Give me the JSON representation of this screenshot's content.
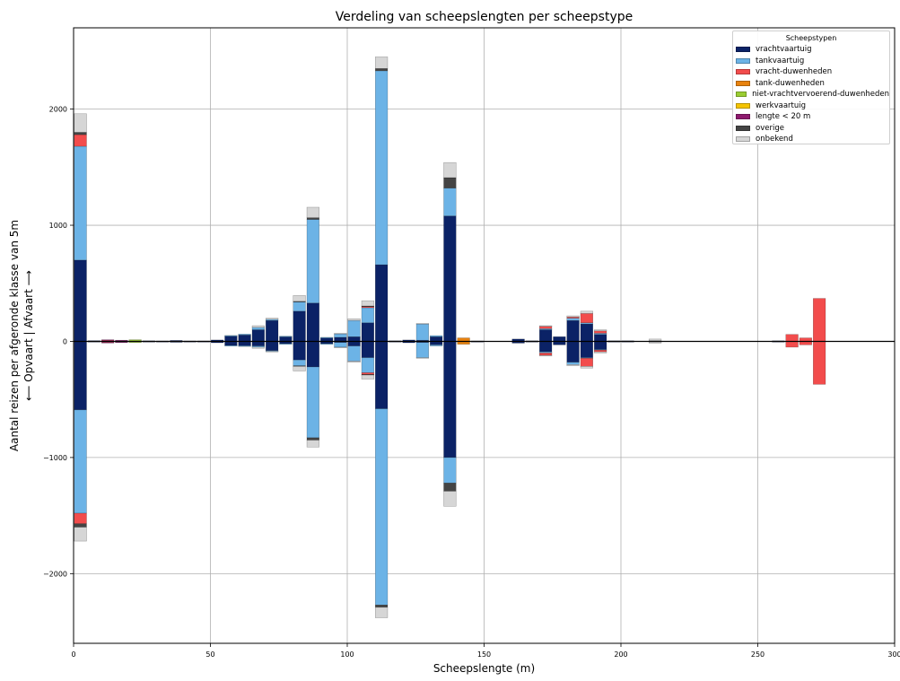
{
  "chart_data": {
    "type": "bar",
    "title": "Verdeling van scheepslengten per scheepstype",
    "xlabel": "Scheepslengte (m)",
    "ylabel_line1": "Aantal reizen per afgeronde klasse van 5m",
    "ylabel_line2": "⟵  Opvaart | Afvaart  ⟶",
    "xlim": [
      0,
      300
    ],
    "ylim": [
      -2600,
      2700
    ],
    "xticks": [
      0,
      50,
      100,
      150,
      200,
      250,
      300
    ],
    "yticks": [
      -2000,
      -1000,
      0,
      1000,
      2000
    ],
    "xtick_labels": [
      "0",
      "50",
      "100",
      "150",
      "200",
      "250",
      "300"
    ],
    "ytick_labels": [
      "−2000",
      "−1000",
      "0",
      "1000",
      "2000"
    ],
    "grid": true,
    "bar_width": 4.5,
    "legend": {
      "title": "Scheepstypen",
      "position": "top-right",
      "entries": [
        {
          "key": "vracht",
          "label": "vrachtvaartuig",
          "color": "#0b2266"
        },
        {
          "key": "tank",
          "label": "tankvaartuig",
          "color": "#6cb3e6"
        },
        {
          "key": "vduw",
          "label": "vracht-duwenheden",
          "color": "#f24c4c"
        },
        {
          "key": "tduw",
          "label": "tank-duwenheden",
          "color": "#e8820e"
        },
        {
          "key": "nvduw",
          "label": "niet-vrachtvervoerend-duwenheden",
          "color": "#9acd32"
        },
        {
          "key": "werk",
          "label": "werkvaartuig",
          "color": "#f5c400"
        },
        {
          "key": "klein",
          "label": "lengte < 20 m",
          "color": "#8e1a6e"
        },
        {
          "key": "overig",
          "label": "overige",
          "color": "#444444"
        },
        {
          "key": "onbekend",
          "label": "onbekend",
          "color": "#d6d6d6"
        }
      ]
    },
    "series_order": [
      "vracht",
      "tank",
      "vduw",
      "tduw",
      "nvduw",
      "werk",
      "klein",
      "overig",
      "onbekend"
    ],
    "bins": [
      {
        "x": 2.5,
        "up": {
          "vracht": 700,
          "tank": 980,
          "vduw": 100,
          "overig": 20,
          "onbekend": 160
        },
        "down": {
          "vracht": 590,
          "tank": 890,
          "vduw": 90,
          "overig": 30,
          "onbekend": 120
        }
      },
      {
        "x": 7.5,
        "up": {
          "vracht": 6
        },
        "down": {
          "vracht": 6
        }
      },
      {
        "x": 12.5,
        "up": {
          "vduw": 8,
          "klein": 6
        },
        "down": {
          "vduw": 8,
          "klein": 6
        }
      },
      {
        "x": 17.5,
        "up": {
          "vracht": 5,
          "klein": 5
        },
        "down": {
          "vracht": 5,
          "klein": 5
        }
      },
      {
        "x": 22.5,
        "up": {
          "nvduw": 10,
          "vracht": 4
        },
        "down": {
          "nvduw": 6,
          "vracht": 4
        }
      },
      {
        "x": 27.5,
        "up": {
          "vracht": 5
        },
        "down": {
          "vracht": 5
        }
      },
      {
        "x": 32.5,
        "up": {
          "vracht": 4
        },
        "down": {
          "vracht": 4
        }
      },
      {
        "x": 37.5,
        "up": {
          "vracht": 8
        },
        "down": {
          "vracht": 8
        }
      },
      {
        "x": 42.5,
        "up": {
          "vracht": 4
        },
        "down": {
          "vracht": 4
        }
      },
      {
        "x": 47.5,
        "up": {
          "vracht": 4
        },
        "down": {
          "vracht": 4
        }
      },
      {
        "x": 52.5,
        "up": {
          "vracht": 12
        },
        "down": {
          "vracht": 12
        }
      },
      {
        "x": 57.5,
        "up": {
          "vracht": 45,
          "tank": 6
        },
        "down": {
          "vracht": 35,
          "tank": 5
        }
      },
      {
        "x": 62.5,
        "up": {
          "vracht": 55,
          "tank": 8
        },
        "down": {
          "vracht": 38,
          "tank": 6
        }
      },
      {
        "x": 67.5,
        "up": {
          "vracht": 100,
          "tank": 20,
          "onbekend": 15
        },
        "down": {
          "vracht": 40,
          "tank": 10,
          "onbekend": 10
        }
      },
      {
        "x": 72.5,
        "up": {
          "vracht": 180,
          "tank": 10,
          "onbekend": 10
        },
        "down": {
          "vracht": 80,
          "tank": 5,
          "onbekend": 5
        }
      },
      {
        "x": 77.5,
        "up": {
          "vracht": 40,
          "tank": 5
        },
        "down": {
          "vracht": 20,
          "tank": 5
        }
      },
      {
        "x": 82.5,
        "up": {
          "vracht": 260,
          "tank": 80,
          "overig": 5,
          "onbekend": 50
        },
        "down": {
          "vracht": 160,
          "tank": 50,
          "overig": 5,
          "onbekend": 40
        }
      },
      {
        "x": 87.5,
        "up": {
          "vracht": 330,
          "tank": 720,
          "overig": 15,
          "onbekend": 90
        },
        "down": {
          "vracht": 220,
          "tank": 610,
          "overig": 20,
          "onbekend": 60
        }
      },
      {
        "x": 92.5,
        "up": {
          "vracht": 30,
          "tank": 5
        },
        "down": {
          "vracht": 20,
          "tank": 4
        }
      },
      {
        "x": 97.5,
        "up": {
          "vracht": 35,
          "tank": 30,
          "onbekend": 5
        },
        "down": {
          "vracht": 10,
          "tank": 40,
          "onbekend": 5
        }
      },
      {
        "x": 102.5,
        "up": {
          "vracht": 40,
          "tank": 140,
          "onbekend": 15
        },
        "down": {
          "vracht": 40,
          "tank": 130,
          "onbekend": 10
        }
      },
      {
        "x": 107.5,
        "up": {
          "vracht": 160,
          "tank": 130,
          "vduw": 10,
          "overig": 5,
          "onbekend": 45
        },
        "down": {
          "vracht": 140,
          "tank": 130,
          "vduw": 15,
          "overig": 5,
          "onbekend": 35
        }
      },
      {
        "x": 112.5,
        "up": {
          "vracht": 660,
          "tank": 1670,
          "overig": 20,
          "onbekend": 100
        },
        "down": {
          "vracht": 580,
          "tank": 1690,
          "overig": 20,
          "onbekend": 90
        }
      },
      {
        "x": 117.5,
        "up": {
          "vracht": 5
        },
        "down": {
          "vracht": 5
        }
      },
      {
        "x": 122.5,
        "up": {
          "vracht": 12
        },
        "down": {
          "vracht": 12
        }
      },
      {
        "x": 127.5,
        "up": {
          "vracht": 10,
          "tank": 140,
          "onbekend": 5
        },
        "down": {
          "vracht": 10,
          "tank": 130,
          "onbekend": 5
        }
      },
      {
        "x": 132.5,
        "up": {
          "vracht": 40,
          "tank": 10
        },
        "down": {
          "vracht": 30,
          "tank": 10
        }
      },
      {
        "x": 137.5,
        "up": {
          "vracht": 1080,
          "tank": 240,
          "overig": 90,
          "onbekend": 130
        },
        "down": {
          "vracht": 1000,
          "tank": 220,
          "overig": 70,
          "onbekend": 130
        }
      },
      {
        "x": 142.5,
        "up": {
          "tduw": 30
        },
        "down": {
          "tduw": 25
        }
      },
      {
        "x": 147.5,
        "up": {
          "vracht": 4
        },
        "down": {
          "vracht": 4
        }
      },
      {
        "x": 162.5,
        "up": {
          "vracht": 20
        },
        "down": {
          "vracht": 15
        }
      },
      {
        "x": 167.5,
        "up": {
          "vracht": 5
        },
        "down": {
          "vracht": 5
        }
      },
      {
        "x": 172.5,
        "up": {
          "vracht": 100,
          "tank": 10,
          "vduw": 20,
          "onbekend": 5
        },
        "down": {
          "vracht": 90,
          "tank": 10,
          "vduw": 20,
          "onbekend": 5
        }
      },
      {
        "x": 177.5,
        "up": {
          "vracht": 40
        },
        "down": {
          "vracht": 30
        }
      },
      {
        "x": 182.5,
        "up": {
          "vracht": 180,
          "tank": 20,
          "vduw": 10,
          "onbekend": 10
        },
        "down": {
          "vracht": 180,
          "tank": 20,
          "onbekend": 10
        }
      },
      {
        "x": 187.5,
        "up": {
          "vracht": 150,
          "tank": 10,
          "vduw": 80,
          "onbekend": 20
        },
        "down": {
          "vracht": 140,
          "tank": 5,
          "vduw": 70,
          "onbekend": 15
        }
      },
      {
        "x": 192.5,
        "up": {
          "vracht": 60,
          "tank": 10,
          "vduw": 20,
          "onbekend": 10
        },
        "down": {
          "vracht": 70,
          "tank": 5,
          "vduw": 15,
          "onbekend": 10
        }
      },
      {
        "x": 197.5,
        "up": {
          "vracht": 5
        },
        "down": {
          "vracht": 5
        }
      },
      {
        "x": 202.5,
        "up": {
          "vracht": 5
        },
        "down": {
          "vracht": 5
        }
      },
      {
        "x": 212.5,
        "up": {
          "vracht": 5,
          "onbekend": 15
        },
        "down": {
          "vracht": 5,
          "onbekend": 10
        }
      },
      {
        "x": 257.5,
        "up": {
          "vracht": 5
        },
        "down": {
          "vracht": 5
        }
      },
      {
        "x": 262.5,
        "up": {
          "vduw": 60
        },
        "down": {
          "vduw": 50
        }
      },
      {
        "x": 267.5,
        "up": {
          "vduw": 30
        },
        "down": {
          "vduw": 30
        }
      },
      {
        "x": 272.5,
        "up": {
          "vduw": 370
        },
        "down": {
          "vduw": 370
        }
      }
    ]
  }
}
